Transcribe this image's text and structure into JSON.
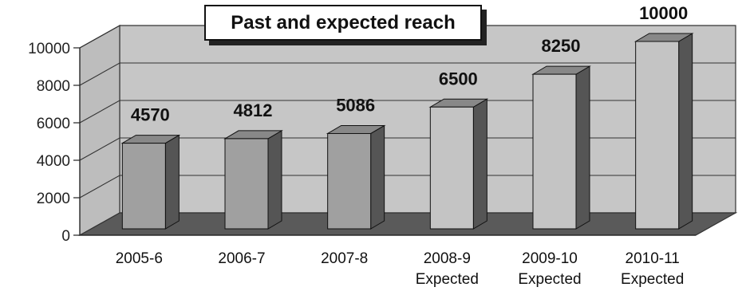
{
  "chart_data": {
    "type": "bar",
    "title": "Past and expected reach",
    "xlabel": "",
    "ylabel": "",
    "ylim": [
      0,
      10000
    ],
    "y_ticks": [
      "0",
      "2000",
      "4000",
      "6000",
      "8000",
      "10000"
    ],
    "categories": [
      [
        "2005-6"
      ],
      [
        "2006-7"
      ],
      [
        "2007-8"
      ],
      [
        "2008-9",
        "Expected"
      ],
      [
        "2009-10",
        "Expected"
      ],
      [
        "2010-11",
        "Expected"
      ]
    ],
    "values": [
      4570,
      4812,
      5086,
      6500,
      8250,
      10000
    ],
    "data_labels": [
      "4570",
      "4812",
      "5086",
      "6500",
      "8250",
      "10000"
    ],
    "past_count": 3,
    "grid": true,
    "style": "3d",
    "colors": {
      "bar_past_front": "#a0a0a0",
      "bar_expected_front": "#c4c4c4",
      "bar_side": "#555555",
      "bar_top": "#888888",
      "wall": "#c6c6c6",
      "floor": "#5a5a5a"
    }
  }
}
